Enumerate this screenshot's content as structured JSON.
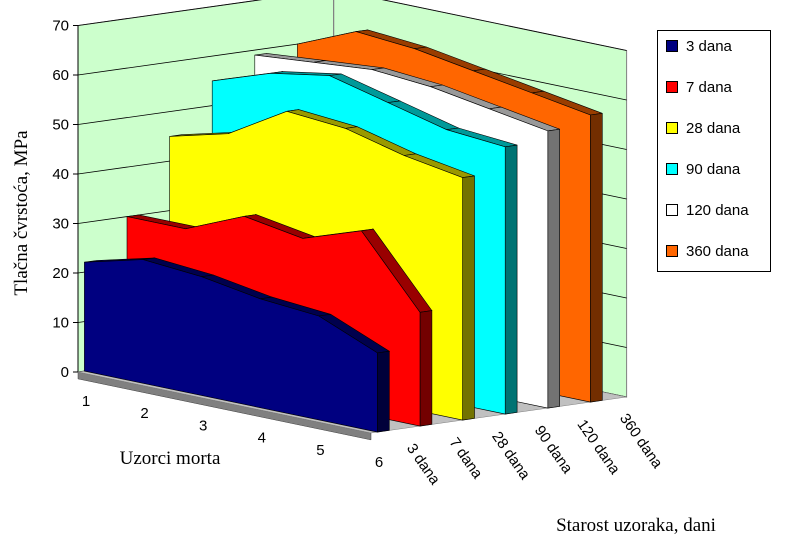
{
  "chart_data": {
    "type": "area",
    "title": "",
    "ylabel": "Tlačna čvrstoća, MPa",
    "xlabel": "Uzorci morta",
    "zlabel": "Starost uzoraka, dani",
    "ylim": [
      0,
      70
    ],
    "yticks": [
      "0",
      "10",
      "20",
      "30",
      "40",
      "50",
      "60",
      "70"
    ],
    "x": [
      "1",
      "2",
      "3",
      "4",
      "5",
      "6"
    ],
    "z": [
      "3 dana",
      "7 dana",
      "28 dana",
      "90 dana",
      "120 dana",
      "360 dana"
    ],
    "grid": true,
    "legend_position": "right",
    "series": [
      {
        "name": "3 dana",
        "color": "#000080",
        "values": [
          22,
          25,
          24,
          22,
          21,
          16
        ]
      },
      {
        "name": "7 dana",
        "color": "#ff0000",
        "values": [
          30,
          30,
          35,
          33,
          37,
          23
        ]
      },
      {
        "name": "28 dana",
        "color": "#ffff00",
        "values": [
          45,
          48,
          55,
          54,
          51,
          49
        ]
      },
      {
        "name": "90 dana",
        "color": "#00ffff",
        "values": [
          55,
          59,
          61,
          58,
          55,
          54
        ]
      },
      {
        "name": "120 dana",
        "color": "#ffffff",
        "values": [
          59,
          60,
          61,
          60,
          58,
          56
        ]
      },
      {
        "name": "360 dana",
        "color": "#ff6600",
        "values": [
          60,
          65,
          64,
          62,
          60,
          58
        ]
      }
    ]
  }
}
